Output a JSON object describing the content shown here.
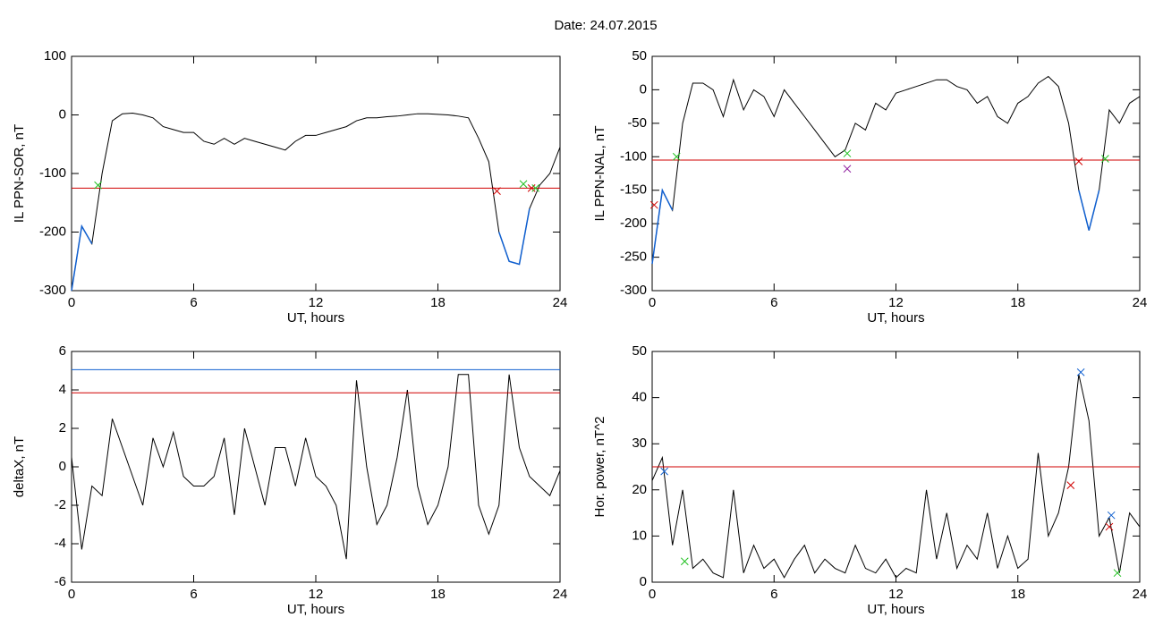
{
  "title": "Date:  24.07.2015",
  "chart_data": [
    {
      "type": "line",
      "xlabel": "UT, hours",
      "ylabel": "IL PPN-SOR, nT",
      "xlim": [
        0,
        24
      ],
      "xticks": [
        0,
        6,
        12,
        18,
        24
      ],
      "ylim": [
        -300,
        100
      ],
      "yticks": [
        -300,
        -200,
        -100,
        0,
        100
      ],
      "x": [
        0,
        0.5,
        1,
        1.5,
        2,
        2.5,
        3,
        3.5,
        4,
        4.5,
        5,
        5.5,
        6,
        6.5,
        7,
        7.5,
        8,
        8.5,
        9,
        9.5,
        10,
        10.5,
        11,
        11.5,
        12,
        12.5,
        13,
        13.5,
        14,
        14.5,
        15,
        15.5,
        16,
        16.5,
        17,
        17.5,
        18,
        18.5,
        19,
        19.5,
        20,
        20.5,
        21,
        21.5,
        22,
        22.5,
        23,
        23.5,
        24
      ],
      "values": [
        -300,
        -190,
        -220,
        -100,
        -10,
        2,
        3,
        0,
        -5,
        -20,
        -25,
        -30,
        -30,
        -45,
        -50,
        -40,
        -50,
        -40,
        -45,
        -50,
        -55,
        -60,
        -45,
        -35,
        -35,
        -30,
        -25,
        -20,
        -10,
        -5,
        -5,
        -3,
        -2,
        0,
        2,
        2,
        1,
        0,
        -2,
        -5,
        -40,
        -80,
        -200,
        -250,
        -255,
        -160,
        -120,
        -100,
        -55
      ],
      "color": "#000000",
      "below_color": "#1060d0",
      "hlines": [
        {
          "value": -125,
          "color": "#d00000"
        }
      ],
      "markers": [
        {
          "x": 1.3,
          "y": -120,
          "color": "#20c020"
        },
        {
          "x": 20.9,
          "y": -130,
          "color": "#d00000"
        },
        {
          "x": 22.2,
          "y": -118,
          "color": "#20c020"
        },
        {
          "x": 22.6,
          "y": -125,
          "color": "#d00000"
        },
        {
          "x": 22.8,
          "y": -125,
          "color": "#20c020"
        }
      ]
    },
    {
      "type": "line",
      "xlabel": "UT, hours",
      "ylabel": "IL PPN-NAL, nT",
      "xlim": [
        0,
        24
      ],
      "xticks": [
        0,
        6,
        12,
        18,
        24
      ],
      "ylim": [
        -300,
        50
      ],
      "yticks": [
        -300,
        -250,
        -200,
        -150,
        -100,
        -50,
        0,
        50
      ],
      "x": [
        0,
        0.5,
        1,
        1.5,
        2,
        2.5,
        3,
        3.5,
        4,
        4.5,
        5,
        5.5,
        6,
        6.5,
        7,
        7.5,
        8,
        8.5,
        9,
        9.5,
        10,
        10.5,
        11,
        11.5,
        12,
        12.5,
        13,
        13.5,
        14,
        14.5,
        15,
        15.5,
        16,
        16.5,
        17,
        17.5,
        18,
        18.5,
        19,
        19.5,
        20,
        20.5,
        21,
        21.5,
        22,
        22.5,
        23,
        23.5,
        24
      ],
      "values": [
        -260,
        -150,
        -180,
        -50,
        10,
        10,
        0,
        -40,
        15,
        -30,
        0,
        -10,
        -40,
        0,
        -20,
        -40,
        -60,
        -80,
        -100,
        -90,
        -50,
        -60,
        -20,
        -30,
        -5,
        0,
        5,
        10,
        15,
        15,
        5,
        0,
        -20,
        -10,
        -40,
        -50,
        -20,
        -10,
        10,
        20,
        5,
        -50,
        -150,
        -210,
        -150,
        -30,
        -50,
        -20,
        -10
      ],
      "color": "#000000",
      "below_color": "#1060d0",
      "hlines": [
        {
          "value": -105,
          "color": "#d00000"
        }
      ],
      "markers": [
        {
          "x": 0.1,
          "y": -172,
          "color": "#d00000"
        },
        {
          "x": 1.2,
          "y": -100,
          "color": "#20c020"
        },
        {
          "x": 9.6,
          "y": -95,
          "color": "#20c020"
        },
        {
          "x": 9.6,
          "y": -118,
          "color": "#9020a0"
        },
        {
          "x": 21.0,
          "y": -107,
          "color": "#d00000"
        },
        {
          "x": 22.3,
          "y": -103,
          "color": "#20c020"
        }
      ]
    },
    {
      "type": "line",
      "xlabel": "UT, hours",
      "ylabel": "deltaX, nT",
      "xlim": [
        0,
        24
      ],
      "xticks": [
        0,
        6,
        12,
        18,
        24
      ],
      "ylim": [
        -6,
        6
      ],
      "yticks": [
        -6,
        -4,
        -2,
        0,
        2,
        4,
        6
      ],
      "x": [
        0,
        0.5,
        1,
        1.5,
        2,
        2.5,
        3,
        3.5,
        4,
        4.5,
        5,
        5.5,
        6,
        6.5,
        7,
        7.5,
        8,
        8.5,
        9,
        9.5,
        10,
        10.5,
        11,
        11.5,
        12,
        12.5,
        13,
        13.5,
        14,
        14.5,
        15,
        15.5,
        16,
        16.5,
        17,
        17.5,
        18,
        18.5,
        19,
        19.5,
        20,
        20.5,
        21,
        21.5,
        22,
        22.5,
        23,
        23.5,
        24
      ],
      "values": [
        0.5,
        -4.3,
        -1,
        -1.5,
        2.5,
        1,
        -0.5,
        -2,
        1.5,
        0,
        1.8,
        -0.5,
        -1,
        -1,
        -0.5,
        1.5,
        -2.5,
        2,
        0,
        -2,
        1,
        1,
        -1,
        1.5,
        -0.5,
        -1,
        -2,
        -4.8,
        4.5,
        0,
        -3,
        -2,
        0.5,
        4,
        -1,
        -3,
        -2,
        0,
        4.8,
        4.8,
        -2,
        -3.5,
        -2,
        4.8,
        1,
        -0.5,
        -1,
        -1.5,
        -0.2
      ],
      "color": "#000000",
      "hlines": [
        {
          "value": 3.85,
          "color": "#d00000"
        },
        {
          "value": 5.05,
          "color": "#1060d0"
        }
      ],
      "markers": []
    },
    {
      "type": "line",
      "xlabel": "UT, hours",
      "ylabel": "Hor. power, nT^2",
      "xlim": [
        0,
        24
      ],
      "xticks": [
        0,
        6,
        12,
        18,
        24
      ],
      "ylim": [
        0,
        50
      ],
      "yticks": [
        0,
        10,
        20,
        30,
        40,
        50
      ],
      "x": [
        0,
        0.5,
        1,
        1.5,
        2,
        2.5,
        3,
        3.5,
        4,
        4.5,
        5,
        5.5,
        6,
        6.5,
        7,
        7.5,
        8,
        8.5,
        9,
        9.5,
        10,
        10.5,
        11,
        11.5,
        12,
        12.5,
        13,
        13.5,
        14,
        14.5,
        15,
        15.5,
        16,
        16.5,
        17,
        17.5,
        18,
        18.5,
        19,
        19.5,
        20,
        20.5,
        21,
        21.5,
        22,
        22.5,
        23,
        23.5,
        24
      ],
      "values": [
        22,
        27,
        8,
        20,
        3,
        5,
        2,
        1,
        20,
        2,
        8,
        3,
        5,
        1,
        5,
        8,
        2,
        5,
        3,
        2,
        8,
        3,
        2,
        5,
        1,
        3,
        2,
        20,
        5,
        15,
        3,
        8,
        5,
        15,
        3,
        10,
        3,
        5,
        28,
        10,
        15,
        25,
        45,
        35,
        10,
        14,
        2,
        15,
        12
      ],
      "color": "#000000",
      "hlines": [
        {
          "value": 25,
          "color": "#d00000"
        }
      ],
      "markers": [
        {
          "x": 0.6,
          "y": 24,
          "color": "#1060d0"
        },
        {
          "x": 1.6,
          "y": 4.5,
          "color": "#20c020"
        },
        {
          "x": 20.6,
          "y": 21,
          "color": "#d00000"
        },
        {
          "x": 21.1,
          "y": 45.5,
          "color": "#1060d0"
        },
        {
          "x": 22.6,
          "y": 14.5,
          "color": "#1060d0"
        },
        {
          "x": 22.5,
          "y": 12,
          "color": "#d00000"
        },
        {
          "x": 22.9,
          "y": 2,
          "color": "#20c020"
        }
      ]
    }
  ]
}
